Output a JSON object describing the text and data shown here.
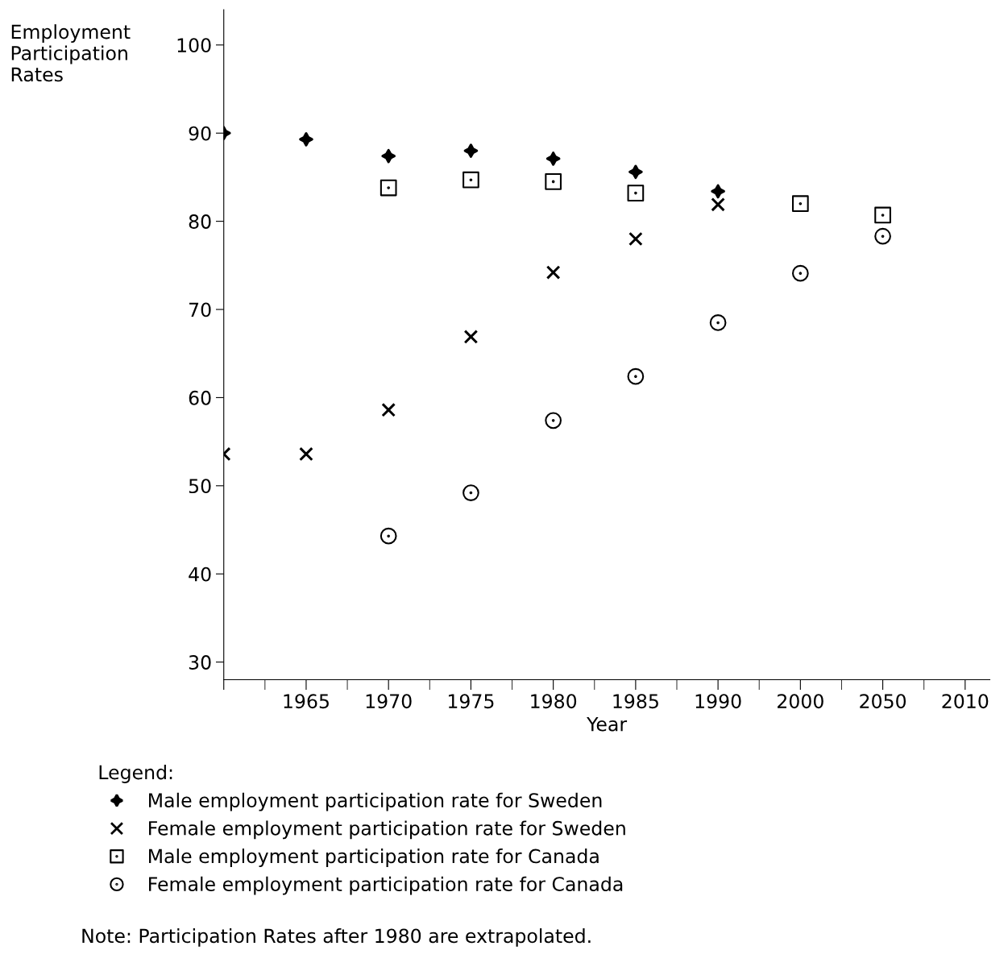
{
  "chart_data": {
    "type": "scatter",
    "ylabel": "Employment\nParticipation\nRates",
    "xlabel": "Year",
    "categories": [
      null,
      "1965",
      "1970",
      "1975",
      "1980",
      "1985",
      "1990",
      "2000",
      "2050",
      "2010"
    ],
    "ylim": [
      28,
      104
    ],
    "yticks": [
      30,
      40,
      50,
      60,
      70,
      80,
      90,
      100
    ],
    "grid": false,
    "legend": "bottom",
    "legend_title": "Legend:",
    "series": [
      {
        "name": "Male employment participation rate for Sweden",
        "color": "#000000",
        "marker": "star",
        "values": [
          90,
          89.3,
          87.4,
          88.0,
          87.1,
          85.6,
          83.4,
          null,
          null,
          null
        ]
      },
      {
        "name": "Female employment participation rate for Sweden",
        "color": "#000000",
        "marker": "cross",
        "values": [
          53.6,
          53.6,
          58.6,
          66.9,
          74.2,
          78.0,
          81.9,
          null,
          null,
          null
        ]
      },
      {
        "name": "Male employment participation rate for Canada",
        "color": "#000000",
        "marker": "square",
        "values": [
          null,
          null,
          83.8,
          84.7,
          84.5,
          83.2,
          null,
          82.0,
          80.7,
          null
        ]
      },
      {
        "name": "Female employment participation rate for Canada",
        "color": "#000000",
        "marker": "circle",
        "values": [
          null,
          null,
          44.3,
          49.2,
          57.4,
          62.4,
          68.5,
          74.1,
          78.3,
          null
        ]
      }
    ],
    "annotations": [
      "Note: Participation Rates after 1980 are extrapolated."
    ]
  }
}
